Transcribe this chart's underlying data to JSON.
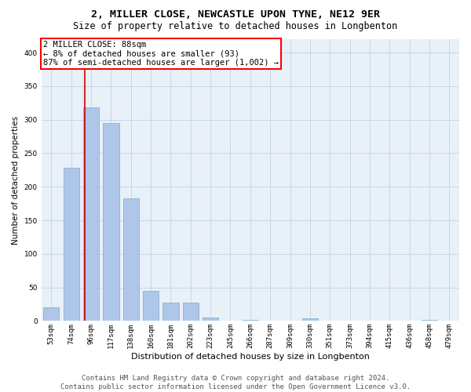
{
  "title": "2, MILLER CLOSE, NEWCASTLE UPON TYNE, NE12 9ER",
  "subtitle": "Size of property relative to detached houses in Longbenton",
  "xlabel": "Distribution of detached houses by size in Longbenton",
  "ylabel": "Number of detached properties",
  "categories": [
    "53sqm",
    "74sqm",
    "96sqm",
    "117sqm",
    "138sqm",
    "160sqm",
    "181sqm",
    "202sqm",
    "223sqm",
    "245sqm",
    "266sqm",
    "287sqm",
    "309sqm",
    "330sqm",
    "351sqm",
    "373sqm",
    "394sqm",
    "415sqm",
    "436sqm",
    "458sqm",
    "479sqm"
  ],
  "values": [
    20,
    228,
    318,
    295,
    183,
    45,
    27,
    27,
    5,
    0,
    2,
    0,
    0,
    4,
    0,
    0,
    0,
    0,
    0,
    2,
    0
  ],
  "bar_color": "#aec6e8",
  "bar_edge_color": "#7aadcc",
  "grid_color": "#c8d8e8",
  "background_color": "#e8f0f8",
  "vline_color": "#cc0000",
  "vline_pos": 1.68,
  "annotation_text": "2 MILLER CLOSE: 88sqm\n← 8% of detached houses are smaller (93)\n87% of semi-detached houses are larger (1,002) →",
  "footer_text": "Contains HM Land Registry data © Crown copyright and database right 2024.\nContains public sector information licensed under the Open Government Licence v3.0.",
  "ylim": [
    0,
    420
  ],
  "title_fontsize": 9.5,
  "subtitle_fontsize": 8.5,
  "xlabel_fontsize": 8,
  "ylabel_fontsize": 7.5,
  "tick_fontsize": 6.5,
  "annotation_fontsize": 7.5,
  "footer_fontsize": 6.5
}
